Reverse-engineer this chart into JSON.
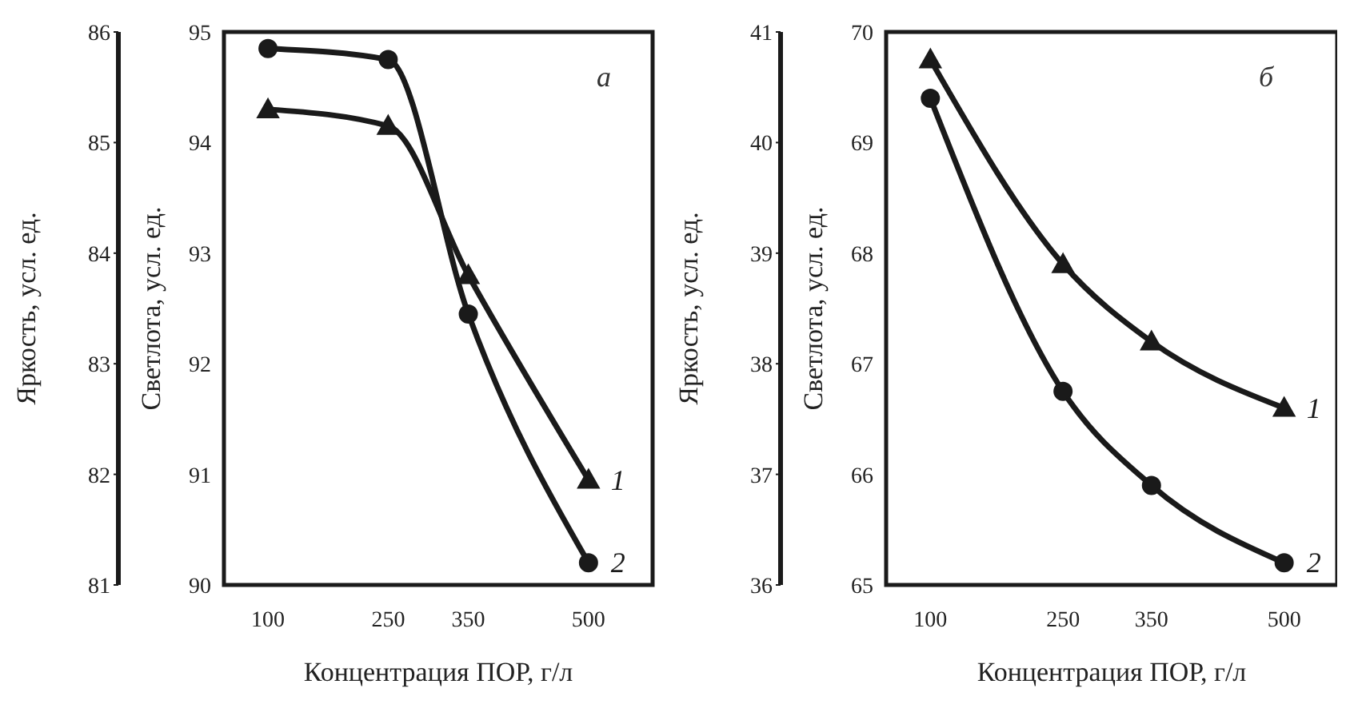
{
  "chart_data": [
    {
      "type": "line",
      "xlabel": "Концентрация ПОР, г/л",
      "ylabel": "Светлота, усл. ед.",
      "y2label": "Яркость, усл. ед.",
      "annotations": [
        "а"
      ],
      "x": [
        100,
        250,
        350,
        500
      ],
      "xlim": [
        45,
        580
      ],
      "xticks": [
        100,
        250,
        350,
        500
      ],
      "ylim": [
        90,
        95
      ],
      "yticks": [
        90,
        91,
        92,
        93,
        94,
        95
      ],
      "y2lim": [
        81,
        86
      ],
      "y2ticks": [
        81,
        82,
        83,
        84,
        85,
        86
      ],
      "grid": false,
      "legend": false,
      "series": [
        {
          "name": "1",
          "color": "#1a1a1a",
          "axis": "y2",
          "marker": "triangle",
          "values": [
            85.3,
            85.15,
            83.8,
            81.95
          ]
        },
        {
          "name": "2",
          "color": "#1a1a1a",
          "marker": "circle",
          "values": [
            94.85,
            94.75,
            92.45,
            90.2
          ]
        }
      ]
    },
    {
      "type": "line",
      "xlabel": "Концентрация ПОР, г/л",
      "ylabel": "Светлота, усл. ед.",
      "y2label": "Яркость, усл. ед.",
      "annotations": [
        "б"
      ],
      "x": [
        100,
        250,
        350,
        500
      ],
      "xlim": [
        50,
        560
      ],
      "xticks": [
        100,
        250,
        350,
        500
      ],
      "ylim": [
        65,
        70
      ],
      "yticks": [
        65,
        66,
        67,
        68,
        69,
        70
      ],
      "y2lim": [
        36,
        41
      ],
      "y2ticks": [
        36,
        37,
        38,
        39,
        40,
        41
      ],
      "grid": false,
      "legend": false,
      "series": [
        {
          "name": "1",
          "color": "#1a1a1a",
          "axis": "y2",
          "marker": "triangle",
          "values": [
            40.75,
            38.9,
            38.2,
            37.6
          ]
        },
        {
          "name": "2",
          "color": "#1a1a1a",
          "marker": "circle",
          "values": [
            69.4,
            66.75,
            65.9,
            65.2
          ]
        }
      ]
    }
  ]
}
